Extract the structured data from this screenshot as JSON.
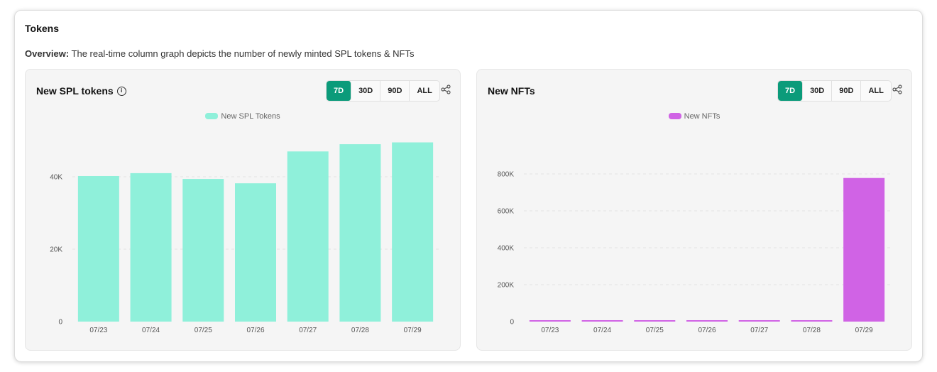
{
  "card": {
    "title": "Tokens",
    "overview_label": "Overview:",
    "overview_text": " The real-time column graph depicts the number of newly minted SPL tokens & NFTs"
  },
  "range_options": [
    "7D",
    "30D",
    "90D",
    "ALL"
  ],
  "active_range": "7D",
  "accent_color": "#0b9b7a",
  "icons": {
    "info": "info-icon",
    "share": "share-icon"
  },
  "chart_data": [
    {
      "type": "bar",
      "title": "New SPL tokens",
      "series": [
        {
          "name": "New SPL Tokens",
          "color": "#8ff0da",
          "values": [
            40200,
            41000,
            39400,
            38200,
            47000,
            49000,
            49500
          ]
        }
      ],
      "categories": [
        "07/23",
        "07/24",
        "07/25",
        "07/26",
        "07/27",
        "07/28",
        "07/29"
      ],
      "yticks": [
        0,
        20000,
        40000
      ],
      "ytick_labels": [
        "0",
        "20K",
        "40K"
      ],
      "ylim": [
        0,
        50000
      ],
      "grid": true
    },
    {
      "type": "bar",
      "title": "New NFTs",
      "series": [
        {
          "name": "New NFTs",
          "color": "#d063e5",
          "values": [
            5000,
            6000,
            4000,
            3000,
            5000,
            6000,
            778000
          ]
        }
      ],
      "categories": [
        "07/23",
        "07/24",
        "07/25",
        "07/26",
        "07/27",
        "07/28",
        "07/29"
      ],
      "yticks": [
        0,
        200000,
        400000,
        600000,
        800000
      ],
      "ytick_labels": [
        "0",
        "200K",
        "400K",
        "600K",
        "800K"
      ],
      "ylim": [
        0,
        800000
      ],
      "grid": true
    }
  ]
}
